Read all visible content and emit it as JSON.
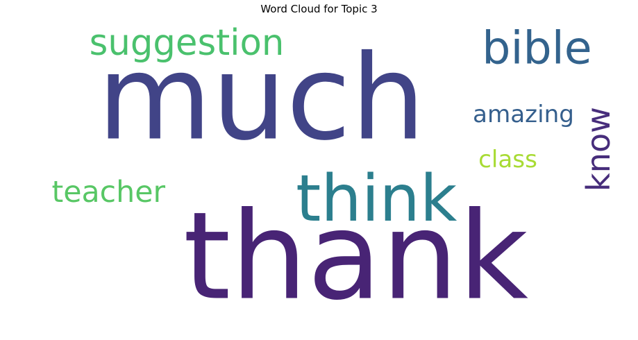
{
  "title": "Word Cloud for Topic 3",
  "chart_data": {
    "type": "wordcloud",
    "title": "Word Cloud for Topic 3",
    "background": "#ffffff",
    "words": [
      {
        "text": "thank",
        "color": "#482475",
        "orientation": "horizontal"
      },
      {
        "text": "much",
        "color": "#414487",
        "orientation": "horizontal"
      },
      {
        "text": "think",
        "color": "#2c7f8e",
        "orientation": "horizontal"
      },
      {
        "text": "bible",
        "color": "#33638d",
        "orientation": "horizontal"
      },
      {
        "text": "suggestion",
        "color": "#4ac16d",
        "orientation": "horizontal"
      },
      {
        "text": "teacher",
        "color": "#58c765",
        "orientation": "horizontal"
      },
      {
        "text": "amazing",
        "color": "#355f8d",
        "orientation": "horizontal"
      },
      {
        "text": "know",
        "color": "#472d7b",
        "orientation": "vertical"
      },
      {
        "text": "class",
        "color": "#a8db34",
        "orientation": "horizontal"
      }
    ]
  }
}
